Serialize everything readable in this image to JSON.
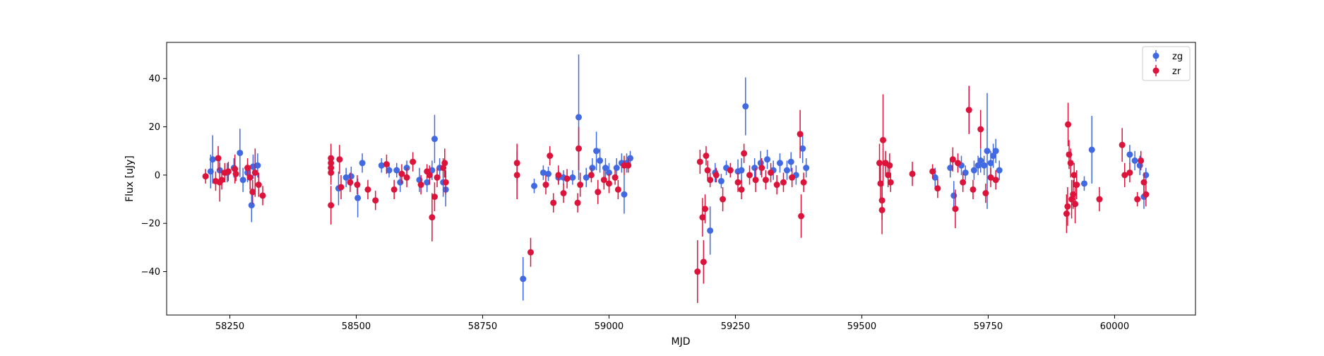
{
  "chart_data": {
    "type": "scatter",
    "title": "",
    "xlabel": "MJD",
    "ylabel": "Flux [uJy]",
    "xlim": [
      58125,
      60160
    ],
    "ylim": [
      -58,
      55
    ],
    "x_ticks": [
      58250,
      58500,
      58750,
      59000,
      59250,
      59500,
      59750,
      60000
    ],
    "y_ticks": [
      -40,
      -20,
      0,
      20,
      40
    ],
    "grid": false,
    "legend_position": "top-right",
    "colors": {
      "zg": "#4169e1",
      "zr": "#dc143c"
    },
    "series": [
      {
        "name": "zg",
        "color": "#4169e1",
        "points": [
          {
            "x": 58212,
            "y": 1.5,
            "err": 7
          },
          {
            "x": 58216,
            "y": 6.5,
            "err": 10
          },
          {
            "x": 58230,
            "y": 2,
            "err": 5
          },
          {
            "x": 58245,
            "y": 1,
            "err": 4
          },
          {
            "x": 58258,
            "y": 3,
            "err": 4
          },
          {
            "x": 58270,
            "y": 9.2,
            "err": 10
          },
          {
            "x": 58276,
            "y": -2,
            "err": 5
          },
          {
            "x": 58285,
            "y": 1,
            "err": 4
          },
          {
            "x": 58293,
            "y": -12.5,
            "err": 7
          },
          {
            "x": 58296,
            "y": 3.5,
            "err": 5
          },
          {
            "x": 58305,
            "y": 4,
            "err": 5
          },
          {
            "x": 58465,
            "y": -5.5,
            "err": 7
          },
          {
            "x": 58480,
            "y": -1,
            "err": 4
          },
          {
            "x": 58490,
            "y": -0.5,
            "err": 4
          },
          {
            "x": 58503,
            "y": -9.5,
            "err": 8
          },
          {
            "x": 58512,
            "y": 5,
            "err": 4
          },
          {
            "x": 58550,
            "y": 4,
            "err": 3
          },
          {
            "x": 58565,
            "y": 2,
            "err": 3
          },
          {
            "x": 58580,
            "y": 2,
            "err": 3
          },
          {
            "x": 58587,
            "y": -3,
            "err": 4
          },
          {
            "x": 58600,
            "y": 3,
            "err": 3
          },
          {
            "x": 58625,
            "y": -2,
            "err": 5
          },
          {
            "x": 58640,
            "y": -3,
            "err": 4
          },
          {
            "x": 58650,
            "y": 2,
            "err": 4
          },
          {
            "x": 58655,
            "y": 15,
            "err": 10
          },
          {
            "x": 58665,
            "y": 3,
            "err": 4
          },
          {
            "x": 58672,
            "y": -3,
            "err": 6
          },
          {
            "x": 58677,
            "y": -6,
            "err": 7
          },
          {
            "x": 58830,
            "y": -43,
            "err": 9
          },
          {
            "x": 58852,
            "y": -4.5,
            "err": 3
          },
          {
            "x": 58870,
            "y": 1,
            "err": 3
          },
          {
            "x": 58880,
            "y": 0.5,
            "err": 3
          },
          {
            "x": 58900,
            "y": -1,
            "err": 3
          },
          {
            "x": 58910,
            "y": -1,
            "err": 3
          },
          {
            "x": 58928,
            "y": -1,
            "err": 3
          },
          {
            "x": 58940,
            "y": 24,
            "err": 26
          },
          {
            "x": 58955,
            "y": -1,
            "err": 4
          },
          {
            "x": 58967,
            "y": 3,
            "err": 4
          },
          {
            "x": 58975,
            "y": 10,
            "err": 8
          },
          {
            "x": 58982,
            "y": 6,
            "err": 5
          },
          {
            "x": 58993,
            "y": 3,
            "err": 4
          },
          {
            "x": 59000,
            "y": 1,
            "err": 4
          },
          {
            "x": 59015,
            "y": 3,
            "err": 4
          },
          {
            "x": 59025,
            "y": 5,
            "err": 4
          },
          {
            "x": 59030,
            "y": -8,
            "err": 8
          },
          {
            "x": 59035,
            "y": 5,
            "err": 4
          },
          {
            "x": 59042,
            "y": 7,
            "err": 3
          },
          {
            "x": 59200,
            "y": -23,
            "err": 10
          },
          {
            "x": 59210,
            "y": 1,
            "err": 4
          },
          {
            "x": 59222,
            "y": -2.5,
            "err": 3
          },
          {
            "x": 59232,
            "y": 3,
            "err": 3
          },
          {
            "x": 59255,
            "y": 1.5,
            "err": 5
          },
          {
            "x": 59262,
            "y": 2,
            "err": 5
          },
          {
            "x": 59270,
            "y": 28.5,
            "err": 12
          },
          {
            "x": 59288,
            "y": 3,
            "err": 4
          },
          {
            "x": 59300,
            "y": 5,
            "err": 5
          },
          {
            "x": 59313,
            "y": 6.5,
            "err": 4
          },
          {
            "x": 59325,
            "y": 2,
            "err": 4
          },
          {
            "x": 59338,
            "y": 5,
            "err": 4
          },
          {
            "x": 59352,
            "y": 2,
            "err": 4
          },
          {
            "x": 59360,
            "y": 5.5,
            "err": 4
          },
          {
            "x": 59370,
            "y": 0,
            "err": 4
          },
          {
            "x": 59383,
            "y": 11,
            "err": 6
          },
          {
            "x": 59390,
            "y": 3,
            "err": 4
          },
          {
            "x": 59645,
            "y": -1,
            "err": 4
          },
          {
            "x": 59675,
            "y": 3,
            "err": 4
          },
          {
            "x": 59682,
            "y": -8.5,
            "err": 6
          },
          {
            "x": 59697,
            "y": 4,
            "err": 4
          },
          {
            "x": 59705,
            "y": 1,
            "err": 3
          },
          {
            "x": 59722,
            "y": 2,
            "err": 4
          },
          {
            "x": 59730,
            "y": 4,
            "err": 4
          },
          {
            "x": 59735,
            "y": 6,
            "err": 5
          },
          {
            "x": 59742,
            "y": 4,
            "err": 4
          },
          {
            "x": 59748,
            "y": 10,
            "err": 24
          },
          {
            "x": 59755,
            "y": 5,
            "err": 5
          },
          {
            "x": 59760,
            "y": 8,
            "err": 5
          },
          {
            "x": 59765,
            "y": 10,
            "err": 5
          },
          {
            "x": 59772,
            "y": 2,
            "err": 4
          },
          {
            "x": 59940,
            "y": -3.5,
            "err": 3
          },
          {
            "x": 59955,
            "y": 10.5,
            "err": 14
          },
          {
            "x": 60030,
            "y": 8.5,
            "err": 4
          },
          {
            "x": 60040,
            "y": 6,
            "err": 4
          },
          {
            "x": 60050,
            "y": 4,
            "err": 4
          },
          {
            "x": 60058,
            "y": -9,
            "err": 5
          },
          {
            "x": 60062,
            "y": 0,
            "err": 3
          }
        ]
      },
      {
        "name": "zr",
        "color": "#dc143c",
        "points": [
          {
            "x": 58202,
            "y": -0.5,
            "err": 3
          },
          {
            "x": 58222,
            "y": -2.5,
            "err": 4
          },
          {
            "x": 58227,
            "y": 7,
            "err": 5
          },
          {
            "x": 58230,
            "y": -3,
            "err": 8
          },
          {
            "x": 58234,
            "y": -2,
            "err": 4
          },
          {
            "x": 58240,
            "y": 1,
            "err": 4
          },
          {
            "x": 58247,
            "y": 1.5,
            "err": 4
          },
          {
            "x": 58260,
            "y": 2.5,
            "err": 6
          },
          {
            "x": 58262,
            "y": 0.5,
            "err": 3
          },
          {
            "x": 58285,
            "y": 3,
            "err": 4
          },
          {
            "x": 58290,
            "y": -1,
            "err": 5
          },
          {
            "x": 58295,
            "y": -7,
            "err": 5
          },
          {
            "x": 58300,
            "y": 1,
            "err": 10
          },
          {
            "x": 58307,
            "y": -4,
            "err": 5
          },
          {
            "x": 58315,
            "y": -8.5,
            "err": 4
          },
          {
            "x": 58450,
            "y": 7,
            "err": 6
          },
          {
            "x": 58450,
            "y": 5,
            "err": 6
          },
          {
            "x": 58450,
            "y": 3,
            "err": 6
          },
          {
            "x": 58450,
            "y": 1,
            "err": 5
          },
          {
            "x": 58450,
            "y": -12.5,
            "err": 8
          },
          {
            "x": 58467,
            "y": 6.5,
            "err": 6
          },
          {
            "x": 58470,
            "y": -5,
            "err": 5
          },
          {
            "x": 58488,
            "y": -3,
            "err": 4
          },
          {
            "x": 58502,
            "y": -4,
            "err": 4
          },
          {
            "x": 58523,
            "y": -6,
            "err": 4
          },
          {
            "x": 58538,
            "y": -10.5,
            "err": 4
          },
          {
            "x": 58560,
            "y": 4.5,
            "err": 4
          },
          {
            "x": 58575,
            "y": -6,
            "err": 4
          },
          {
            "x": 58590,
            "y": 0.5,
            "err": 4
          },
          {
            "x": 58600,
            "y": -1,
            "err": 4
          },
          {
            "x": 58612,
            "y": 5.5,
            "err": 4
          },
          {
            "x": 58628,
            "y": -4,
            "err": 4
          },
          {
            "x": 58640,
            "y": 1.5,
            "err": 3
          },
          {
            "x": 58645,
            "y": 0,
            "err": 4
          },
          {
            "x": 58650,
            "y": -17.5,
            "err": 10
          },
          {
            "x": 58655,
            "y": -9,
            "err": 6
          },
          {
            "x": 58660,
            "y": -1,
            "err": 4
          },
          {
            "x": 58672,
            "y": 3,
            "err": 4
          },
          {
            "x": 58675,
            "y": 5,
            "err": 6
          },
          {
            "x": 58677,
            "y": -3,
            "err": 5
          },
          {
            "x": 58818,
            "y": 5,
            "err": 8
          },
          {
            "x": 58818,
            "y": 0,
            "err": 10
          },
          {
            "x": 58845,
            "y": -32,
            "err": 6
          },
          {
            "x": 58875,
            "y": -4,
            "err": 4
          },
          {
            "x": 58883,
            "y": 8,
            "err": 4
          },
          {
            "x": 58890,
            "y": -11.5,
            "err": 4
          },
          {
            "x": 58900,
            "y": 0,
            "err": 4
          },
          {
            "x": 58910,
            "y": -7.5,
            "err": 4
          },
          {
            "x": 58917,
            "y": -1.5,
            "err": 4
          },
          {
            "x": 58938,
            "y": -11.5,
            "err": 4
          },
          {
            "x": 58940,
            "y": 11,
            "err": 9
          },
          {
            "x": 58943,
            "y": -4,
            "err": 5
          },
          {
            "x": 58965,
            "y": 0,
            "err": 3
          },
          {
            "x": 58978,
            "y": -7,
            "err": 5
          },
          {
            "x": 58990,
            "y": -2,
            "err": 4
          },
          {
            "x": 59000,
            "y": -3.5,
            "err": 4
          },
          {
            "x": 59012,
            "y": -1,
            "err": 3
          },
          {
            "x": 59018,
            "y": -6,
            "err": 4
          },
          {
            "x": 59030,
            "y": 4,
            "err": 4
          },
          {
            "x": 59038,
            "y": 4,
            "err": 3
          },
          {
            "x": 59175,
            "y": -40,
            "err": 13
          },
          {
            "x": 59180,
            "y": 5.5,
            "err": 5
          },
          {
            "x": 59185,
            "y": -17.5,
            "err": 8
          },
          {
            "x": 59187,
            "y": -36,
            "err": 9
          },
          {
            "x": 59190,
            "y": -14,
            "err": 6
          },
          {
            "x": 59192,
            "y": 8,
            "err": 4
          },
          {
            "x": 59195,
            "y": 2,
            "err": 4
          },
          {
            "x": 59200,
            "y": -2,
            "err": 3
          },
          {
            "x": 59212,
            "y": 0,
            "err": 3
          },
          {
            "x": 59225,
            "y": -10,
            "err": 5
          },
          {
            "x": 59240,
            "y": 2,
            "err": 3
          },
          {
            "x": 59255,
            "y": -3,
            "err": 4
          },
          {
            "x": 59262,
            "y": -6,
            "err": 4
          },
          {
            "x": 59267,
            "y": 9,
            "err": 4
          },
          {
            "x": 59278,
            "y": 0,
            "err": 4
          },
          {
            "x": 59290,
            "y": -2,
            "err": 5
          },
          {
            "x": 59302,
            "y": 3,
            "err": 4
          },
          {
            "x": 59310,
            "y": -2,
            "err": 4
          },
          {
            "x": 59320,
            "y": 1,
            "err": 4
          },
          {
            "x": 59332,
            "y": -4,
            "err": 4
          },
          {
            "x": 59345,
            "y": -3,
            "err": 4
          },
          {
            "x": 59362,
            "y": -1,
            "err": 4
          },
          {
            "x": 59378,
            "y": 17,
            "err": 10
          },
          {
            "x": 59380,
            "y": -17,
            "err": 9
          },
          {
            "x": 59385,
            "y": -3,
            "err": 4
          },
          {
            "x": 59535,
            "y": 5,
            "err": 8
          },
          {
            "x": 59537,
            "y": -3.5,
            "err": 8
          },
          {
            "x": 59540,
            "y": -10.5,
            "err": 8
          },
          {
            "x": 59540,
            "y": -14.5,
            "err": 10
          },
          {
            "x": 59542,
            "y": 14.5,
            "err": 19
          },
          {
            "x": 59547,
            "y": 5,
            "err": 5
          },
          {
            "x": 59552,
            "y": 0,
            "err": 5
          },
          {
            "x": 59555,
            "y": 4,
            "err": 5
          },
          {
            "x": 59557,
            "y": -3,
            "err": 4
          },
          {
            "x": 59600,
            "y": 0.5,
            "err": 5
          },
          {
            "x": 59640,
            "y": 1.5,
            "err": 3
          },
          {
            "x": 59650,
            "y": -5.5,
            "err": 4
          },
          {
            "x": 59680,
            "y": 6.5,
            "err": 5
          },
          {
            "x": 59685,
            "y": -14,
            "err": 8
          },
          {
            "x": 59690,
            "y": 5,
            "err": 4
          },
          {
            "x": 59700,
            "y": -3,
            "err": 4
          },
          {
            "x": 59712,
            "y": 27,
            "err": 10
          },
          {
            "x": 59720,
            "y": -6,
            "err": 4
          },
          {
            "x": 59735,
            "y": 19,
            "err": 8
          },
          {
            "x": 59745,
            "y": -7.5,
            "err": 4
          },
          {
            "x": 59755,
            "y": -1,
            "err": 4
          },
          {
            "x": 59765,
            "y": -2,
            "err": 4
          },
          {
            "x": 59905,
            "y": -16,
            "err": 8
          },
          {
            "x": 59907,
            "y": -13,
            "err": 8
          },
          {
            "x": 59908,
            "y": 21,
            "err": 9
          },
          {
            "x": 59910,
            "y": 8.5,
            "err": 6
          },
          {
            "x": 59913,
            "y": 5,
            "err": 6
          },
          {
            "x": 59915,
            "y": -10,
            "err": 8
          },
          {
            "x": 59918,
            "y": -8,
            "err": 6
          },
          {
            "x": 59920,
            "y": 0,
            "err": 5
          },
          {
            "x": 59922,
            "y": -12,
            "err": 8
          },
          {
            "x": 59925,
            "y": -4,
            "err": 6
          },
          {
            "x": 59970,
            "y": -10,
            "err": 5
          },
          {
            "x": 60015,
            "y": 12.5,
            "err": 7
          },
          {
            "x": 60020,
            "y": 0,
            "err": 5
          },
          {
            "x": 60030,
            "y": 1,
            "err": 4
          },
          {
            "x": 60045,
            "y": -10,
            "err": 3
          },
          {
            "x": 60052,
            "y": 6,
            "err": 4
          },
          {
            "x": 60058,
            "y": -3,
            "err": 4
          },
          {
            "x": 60062,
            "y": -8,
            "err": 5
          }
        ]
      }
    ]
  }
}
